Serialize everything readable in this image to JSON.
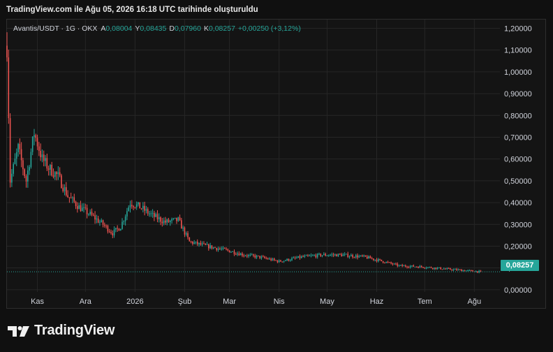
{
  "caption": "TradingView.com ile Ağu 05, 2026 16:18 UTC tarihinde oluşturuldu",
  "brand": {
    "name": "TradingView"
  },
  "legend": {
    "symbol": "Avantis/USDT · 1G · OKX",
    "open_label": "A",
    "open": "0,08004",
    "high_label": "Y",
    "high": "0,08435",
    "low_label": "D",
    "low": "0,07960",
    "close_label": "K",
    "close": "0,08257",
    "change": "+0,00250 (+3,12%)"
  },
  "last_price_label": "0,08257",
  "colors": {
    "up": "#26a69a",
    "down": "#ef5350",
    "background": "#141414",
    "grid": "#262626"
  },
  "chart_data": {
    "type": "candlestick",
    "title": "",
    "xlabel": "",
    "ylabel": "",
    "ylim": [
      -0.01,
      1.24
    ],
    "y_ticks": [
      "1,20000",
      "1,10000",
      "1,00000",
      "0,90000",
      "0,80000",
      "0,70000",
      "0,60000",
      "0,50000",
      "0,40000",
      "0,30000",
      "0,20000",
      "0,10000",
      "0,00000"
    ],
    "y_tick_values": [
      1.2,
      1.1,
      1.0,
      0.9,
      0.8,
      0.7,
      0.6,
      0.5,
      0.4,
      0.3,
      0.2,
      0.1,
      0.0
    ],
    "x_ticks": [
      "Kas",
      "Ara",
      "2026",
      "Şub",
      "Mar",
      "Nis",
      "May",
      "Haz",
      "Tem",
      "Ağu"
    ],
    "x_tick_dates": [
      "2025-11-01",
      "2025-12-01",
      "2026-01-01",
      "2026-02-01",
      "2026-03-01",
      "2026-04-01",
      "2026-05-01",
      "2026-06-01",
      "2026-07-01",
      "2026-08-01"
    ],
    "x_range": [
      "2025-10-13",
      "2026-08-17"
    ],
    "last_price": 0.08257,
    "anchors": [
      [
        "2025-10-13",
        1.12
      ],
      [
        "2025-10-15",
        0.5
      ],
      [
        "2025-10-20",
        0.65
      ],
      [
        "2025-10-25",
        0.5
      ],
      [
        "2025-10-30",
        0.72
      ],
      [
        "2025-11-04",
        0.6
      ],
      [
        "2025-11-08",
        0.56
      ],
      [
        "2025-11-14",
        0.52
      ],
      [
        "2025-11-20",
        0.43
      ],
      [
        "2025-11-27",
        0.38
      ],
      [
        "2025-12-05",
        0.34
      ],
      [
        "2025-12-12",
        0.3
      ],
      [
        "2025-12-18",
        0.26
      ],
      [
        "2025-12-23",
        0.29
      ],
      [
        "2025-12-29",
        0.4
      ],
      [
        "2026-01-04",
        0.38
      ],
      [
        "2026-01-12",
        0.34
      ],
      [
        "2026-01-20",
        0.31
      ],
      [
        "2026-01-28",
        0.32
      ],
      [
        "2026-02-04",
        0.22
      ],
      [
        "2026-02-15",
        0.2
      ],
      [
        "2026-02-28",
        0.18
      ],
      [
        "2026-03-10",
        0.16
      ],
      [
        "2026-03-20",
        0.15
      ],
      [
        "2026-04-01",
        0.13
      ],
      [
        "2026-04-15",
        0.15
      ],
      [
        "2026-04-28",
        0.16
      ],
      [
        "2026-05-10",
        0.16
      ],
      [
        "2026-05-25",
        0.15
      ],
      [
        "2026-06-05",
        0.13
      ],
      [
        "2026-06-15",
        0.11
      ],
      [
        "2026-06-30",
        0.105
      ],
      [
        "2026-07-15",
        0.095
      ],
      [
        "2026-08-05",
        0.08257
      ]
    ]
  }
}
